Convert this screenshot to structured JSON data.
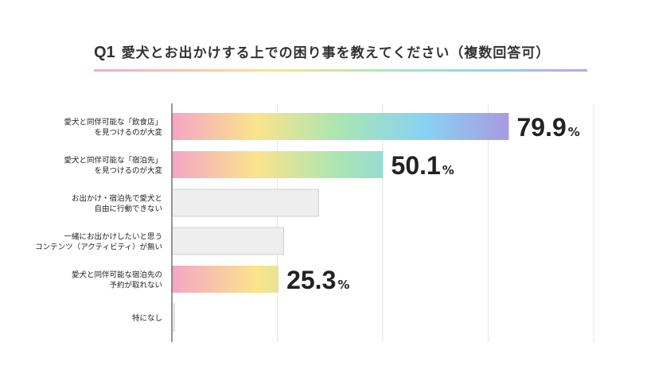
{
  "question": {
    "number": "Q1",
    "text": "愛犬とお出かけする上での困り事を教えてください（複数回答可）"
  },
  "chart_data": {
    "type": "bar",
    "orientation": "horizontal",
    "categories": [
      [
        "愛犬と同伴可能な「飲食店」",
        "を見つけるのが大変"
      ],
      [
        "愛犬と同伴可能な「宿泊先」",
        "を見つけるのが大変"
      ],
      [
        "お出かけ・宿泊先で愛犬と",
        "自由に行動できない"
      ],
      [
        "一緒にお出かけしたいと思う",
        "コンテンツ（アクティビティ）が無い"
      ],
      [
        "愛犬と同伴可能な宿泊先の",
        "予約が取れない"
      ],
      [
        "特になし"
      ]
    ],
    "values": [
      79.9,
      50.1,
      34.8,
      26.5,
      25.3,
      0.6
    ],
    "labels": [
      {
        "number": "79.9",
        "unit": "%"
      },
      {
        "number": "50.1",
        "unit": "%"
      },
      null,
      null,
      {
        "number": "25.3",
        "unit": "%"
      },
      null
    ],
    "highlighted": [
      true,
      true,
      false,
      false,
      true,
      false
    ],
    "xlim": [
      0,
      100
    ],
    "grid": true,
    "colors": {
      "gradient": [
        "#f4a6c6",
        "#fbe48c",
        "#a9e5b3",
        "#89d2f3",
        "#a89be0"
      ],
      "plain_bar": "#eeeeee",
      "plain_bar_border": "#d0d0d0",
      "grid": "#e6e6e6",
      "axis": "#555555",
      "text": "#222222"
    }
  }
}
